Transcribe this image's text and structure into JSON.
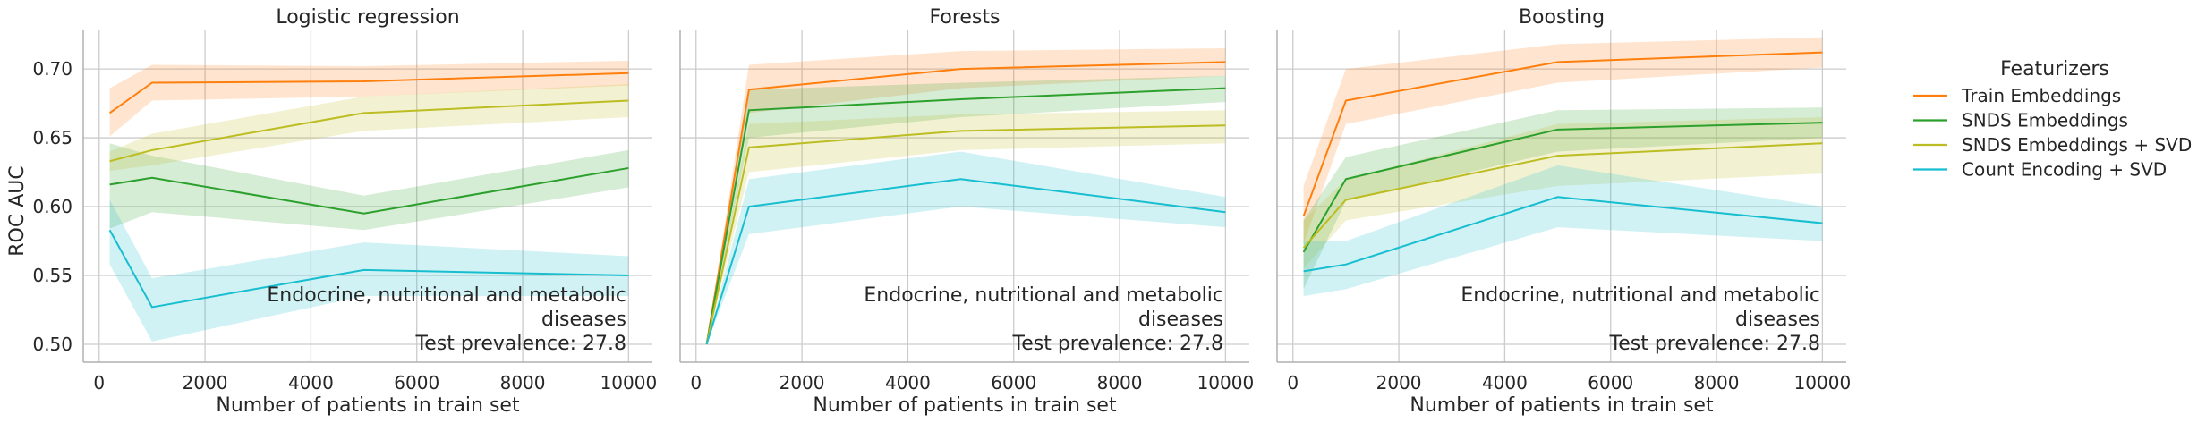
{
  "chart_data": {
    "type": "line",
    "ylabel": "ROC AUC",
    "xlabel": "Number of patients in train set",
    "xlim": [
      -300,
      10450
    ],
    "ylim": [
      0.487,
      0.728
    ],
    "xticks": [
      0,
      2000,
      4000,
      6000,
      8000,
      10000
    ],
    "yticks": [
      0.5,
      0.55,
      0.6,
      0.65,
      0.7
    ],
    "ytick_labels": [
      "0.50",
      "0.55",
      "0.60",
      "0.65",
      "0.70"
    ],
    "grid": true,
    "legend": {
      "title": "Featurizers",
      "placement": "right",
      "entries": [
        "Train Embeddings",
        "SNDS Embeddings",
        "SNDS Embeddings + SVD",
        "Count Encoding + SVD"
      ]
    },
    "colors": {
      "Train Embeddings": "#ff7f0e",
      "SNDS Embeddings": "#2ca02c",
      "SNDS Embeddings + SVD": "#bcbd22",
      "Count Encoding + SVD": "#17becf"
    },
    "panels": [
      {
        "title": "Logistic regression",
        "annotation": [
          "Endocrine, nutritional and metabolic",
          "diseases",
          "Test prevalence: 27.8"
        ],
        "series": [
          {
            "name": "Train Embeddings",
            "x": [
              200,
              1000,
              5000,
              10000
            ],
            "y": [
              0.668,
              0.69,
              0.691,
              0.697
            ],
            "lower": [
              0.651,
              0.677,
              0.68,
              0.688
            ],
            "upper": [
              0.686,
              0.703,
              0.702,
              0.706
            ]
          },
          {
            "name": "SNDS Embeddings",
            "x": [
              200,
              1000,
              5000,
              10000
            ],
            "y": [
              0.616,
              0.621,
              0.595,
              0.628
            ],
            "lower": [
              0.584,
              0.596,
              0.583,
              0.614
            ],
            "upper": [
              0.646,
              0.637,
              0.608,
              0.641
            ]
          },
          {
            "name": "SNDS Embeddings + SVD",
            "x": [
              200,
              1000,
              5000,
              10000
            ],
            "y": [
              0.633,
              0.641,
              0.668,
              0.677
            ],
            "lower": [
              0.626,
              0.63,
              0.655,
              0.665
            ],
            "upper": [
              0.64,
              0.653,
              0.68,
              0.689
            ]
          },
          {
            "name": "Count Encoding + SVD",
            "x": [
              200,
              1000,
              5000,
              10000
            ],
            "y": [
              0.583,
              0.527,
              0.554,
              0.55
            ],
            "lower": [
              0.558,
              0.502,
              0.535,
              0.535
            ],
            "upper": [
              0.605,
              0.548,
              0.574,
              0.564
            ]
          }
        ]
      },
      {
        "title": "Forests",
        "annotation": [
          "Endocrine, nutritional and metabolic",
          "diseases",
          "Test prevalence: 27.8"
        ],
        "series": [
          {
            "name": "Train Embeddings",
            "x": [
              200,
              1000,
              5000,
              10000
            ],
            "y": [
              0.5,
              0.685,
              0.7,
              0.705
            ],
            "lower": [
              0.5,
              0.668,
              0.686,
              0.695
            ],
            "upper": [
              0.5,
              0.703,
              0.713,
              0.715
            ]
          },
          {
            "name": "SNDS Embeddings",
            "x": [
              200,
              1000,
              5000,
              10000
            ],
            "y": [
              0.5,
              0.67,
              0.678,
              0.686
            ],
            "lower": [
              0.5,
              0.65,
              0.665,
              0.676
            ],
            "upper": [
              0.5,
              0.685,
              0.69,
              0.695
            ]
          },
          {
            "name": "SNDS Embeddings + SVD",
            "x": [
              200,
              1000,
              5000,
              10000
            ],
            "y": [
              0.5,
              0.643,
              0.655,
              0.659
            ],
            "lower": [
              0.5,
              0.625,
              0.641,
              0.646
            ],
            "upper": [
              0.5,
              0.66,
              0.667,
              0.67
            ]
          },
          {
            "name": "Count Encoding + SVD",
            "x": [
              200,
              1000,
              5000,
              10000
            ],
            "y": [
              0.5,
              0.6,
              0.62,
              0.596
            ],
            "lower": [
              0.5,
              0.58,
              0.6,
              0.585
            ],
            "upper": [
              0.5,
              0.62,
              0.64,
              0.607
            ]
          }
        ]
      },
      {
        "title": "Boosting",
        "annotation": [
          "Endocrine, nutritional and metabolic",
          "diseases",
          "Test prevalence: 27.8"
        ],
        "series": [
          {
            "name": "Train Embeddings",
            "x": [
              200,
              1000,
              5000,
              10000
            ],
            "y": [
              0.593,
              0.677,
              0.705,
              0.712
            ],
            "lower": [
              0.573,
              0.66,
              0.69,
              0.701
            ],
            "upper": [
              0.615,
              0.7,
              0.718,
              0.723
            ]
          },
          {
            "name": "SNDS Embeddings",
            "x": [
              200,
              1000,
              5000,
              10000
            ],
            "y": [
              0.567,
              0.62,
              0.656,
              0.661
            ],
            "lower": [
              0.54,
              0.604,
              0.64,
              0.65
            ],
            "upper": [
              0.59,
              0.636,
              0.67,
              0.672
            ]
          },
          {
            "name": "SNDS Embeddings + SVD",
            "x": [
              200,
              1000,
              5000,
              10000
            ],
            "y": [
              0.57,
              0.605,
              0.637,
              0.646
            ],
            "lower": [
              0.555,
              0.59,
              0.615,
              0.624
            ],
            "upper": [
              0.59,
              0.62,
              0.66,
              0.665
            ]
          },
          {
            "name": "Count Encoding + SVD",
            "x": [
              200,
              1000,
              5000,
              10000
            ],
            "y": [
              0.553,
              0.558,
              0.607,
              0.588
            ],
            "lower": [
              0.535,
              0.54,
              0.585,
              0.575
            ],
            "upper": [
              0.575,
              0.575,
              0.63,
              0.6
            ]
          }
        ]
      }
    ]
  }
}
